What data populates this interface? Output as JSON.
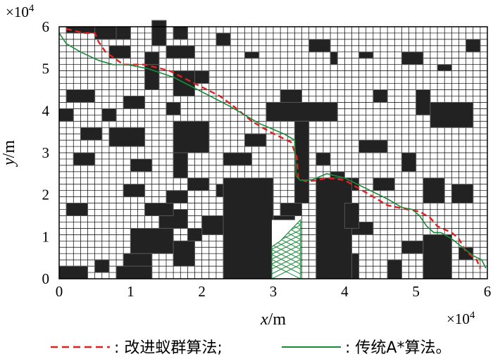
{
  "chart_data": {
    "type": "line",
    "xlabel": "x",
    "xunit": "/m",
    "ylabel": "y",
    "yunit": "/m",
    "x_exponent": "×10",
    "x_exponent_power": "4",
    "y_exponent": "×10",
    "y_exponent_power": "4",
    "xlim": [
      0,
      60000
    ],
    "ylim": [
      0,
      60000
    ],
    "xticks": [
      0,
      10000,
      20000,
      30000,
      40000,
      50000,
      60000
    ],
    "yticks": [
      0,
      10000,
      20000,
      30000,
      40000,
      50000,
      60000
    ],
    "xtick_labels": [
      "0",
      "1",
      "2",
      "3",
      "4",
      "5",
      "6"
    ],
    "ytick_labels": [
      "0",
      "1",
      "2",
      "3",
      "4",
      "5",
      "6"
    ],
    "grid": true,
    "grid_cols": 60,
    "grid_rows": 40,
    "obstacle_color": "#222222",
    "legend_placement": "bottom",
    "legend": [
      {
        "label": ": 改进蚁群算法;",
        "color": "#e02020",
        "style": "dashed"
      },
      {
        "label": ": 传统A*算法。",
        "color": "#1a8a3a",
        "style": "solid"
      }
    ],
    "obstacles": [
      [
        1,
        39,
        4,
        1
      ],
      [
        5,
        38,
        3,
        2
      ],
      [
        8,
        38,
        2,
        2
      ],
      [
        13,
        37,
        2,
        4
      ],
      [
        16,
        38,
        2,
        2
      ],
      [
        7,
        35,
        3,
        2
      ],
      [
        15,
        35,
        4,
        2
      ],
      [
        12,
        34,
        2,
        2
      ],
      [
        22,
        37,
        2,
        2
      ],
      [
        26,
        35,
        2,
        1
      ],
      [
        35,
        36,
        3,
        2
      ],
      [
        38,
        34,
        1,
        2
      ],
      [
        42,
        35,
        2,
        1
      ],
      [
        48,
        34,
        3,
        2
      ],
      [
        53,
        33,
        2,
        1
      ],
      [
        57,
        36,
        2,
        2
      ],
      [
        12,
        30,
        2,
        4
      ],
      [
        16,
        29,
        3,
        4
      ],
      [
        19,
        31,
        2,
        2
      ],
      [
        15,
        26,
        2,
        2
      ],
      [
        1,
        28,
        4,
        2
      ],
      [
        9,
        27,
        3,
        2
      ],
      [
        31,
        27,
        3,
        3
      ],
      [
        44,
        28,
        2,
        2
      ],
      [
        50,
        26,
        2,
        4
      ],
      [
        52,
        24,
        6,
        4
      ],
      [
        29,
        25,
        10,
        3
      ],
      [
        33,
        12,
        2,
        13
      ],
      [
        6,
        25,
        2,
        2
      ],
      [
        3,
        22,
        3,
        2
      ],
      [
        2,
        18,
        3,
        2
      ],
      [
        7,
        21,
        5,
        3
      ],
      [
        16,
        20,
        5,
        5
      ],
      [
        10,
        17,
        3,
        2
      ],
      [
        16,
        16,
        2,
        4
      ],
      [
        23,
        18,
        4,
        2
      ],
      [
        18,
        14,
        3,
        2
      ],
      [
        22,
        13,
        3,
        2
      ],
      [
        9,
        13,
        3,
        2
      ],
      [
        1,
        10,
        3,
        2
      ],
      [
        14,
        8,
        4,
        3
      ],
      [
        20,
        7,
        3,
        3
      ],
      [
        24,
        10,
        4,
        2
      ],
      [
        29,
        7,
        4,
        3
      ],
      [
        31,
        10,
        3,
        2
      ],
      [
        40,
        14,
        2,
        2
      ],
      [
        44,
        14,
        3,
        2
      ],
      [
        48,
        17,
        2,
        3
      ],
      [
        51,
        12,
        3,
        4
      ],
      [
        55,
        12,
        3,
        3
      ],
      [
        36,
        18,
        2,
        2
      ],
      [
        42,
        20,
        4,
        2
      ],
      [
        10,
        4,
        6,
        4
      ],
      [
        16,
        2,
        3,
        4
      ],
      [
        18,
        6,
        2,
        2
      ],
      [
        5,
        1,
        2,
        2
      ],
      [
        8,
        0,
        5,
        2
      ],
      [
        9,
        2,
        4,
        2
      ],
      [
        0,
        0,
        4,
        2
      ],
      [
        12,
        10,
        4,
        2
      ],
      [
        15,
        12,
        3,
        2
      ],
      [
        24,
        4,
        3,
        2
      ],
      [
        25,
        0,
        3,
        3
      ],
      [
        28,
        2,
        2,
        2
      ],
      [
        41,
        7,
        3,
        2
      ],
      [
        48,
        4,
        3,
        2
      ],
      [
        52,
        5,
        3,
        2
      ],
      [
        56,
        3,
        2,
        2
      ],
      [
        0,
        25,
        2,
        2
      ],
      [
        26,
        21,
        3,
        2
      ],
      [
        23,
        0,
        7,
        16
      ],
      [
        36,
        0,
        5,
        16
      ],
      [
        41,
        0,
        1,
        4
      ],
      [
        40,
        8,
        2,
        4
      ],
      [
        38,
        16,
        2,
        1
      ],
      [
        51,
        0,
        4,
        7
      ],
      [
        46,
        0,
        2,
        3
      ]
    ],
    "hatch_region": {
      "x": [
        29800,
        33800
      ],
      "y": [
        0,
        14000
      ],
      "color": "#1a8a3a"
    },
    "series": [
      {
        "name": "改进蚁群算法",
        "color": "#e02020",
        "style": "dashed",
        "x": [
          1000,
          3500,
          5000,
          5500,
          6500,
          9000,
          12000,
          15500,
          19000,
          22500,
          24500,
          27000,
          29500,
          32500,
          33300,
          33500,
          34500,
          36000,
          37500,
          40000,
          42500,
          44000,
          46000,
          48500,
          50500,
          52000,
          53000,
          55000,
          56000,
          57000,
          58500,
          59000
        ],
        "y": [
          59500,
          58500,
          58500,
          56500,
          54000,
          51000,
          51000,
          49500,
          46500,
          43500,
          41000,
          37500,
          35000,
          32500,
          29000,
          24000,
          23200,
          23400,
          24000,
          23500,
          21000,
          19500,
          17500,
          16600,
          16000,
          14500,
          12500,
          11000,
          9500,
          6500,
          4500,
          2500
        ]
      },
      {
        "name": "传统A*算法",
        "color": "#1a8a3a",
        "style": "solid",
        "x": [
          0,
          1000,
          3000,
          5500,
          7500,
          9500,
          12500,
          16000,
          20000,
          24000,
          28000,
          31500,
          33000,
          33200,
          33800,
          35500,
          37500,
          40000,
          43000,
          46000,
          48000,
          49500,
          50500,
          51500,
          52500,
          53500,
          55000,
          56500,
          58000,
          59200,
          59800
        ],
        "y": [
          58500,
          56000,
          54000,
          52000,
          51000,
          51000,
          50000,
          48000,
          44500,
          41000,
          37000,
          34500,
          33000,
          24500,
          23400,
          23600,
          25000,
          24000,
          21500,
          19000,
          17000,
          16500,
          15000,
          12500,
          11000,
          11000,
          9500,
          7500,
          5500,
          4500,
          2500
        ]
      }
    ]
  }
}
